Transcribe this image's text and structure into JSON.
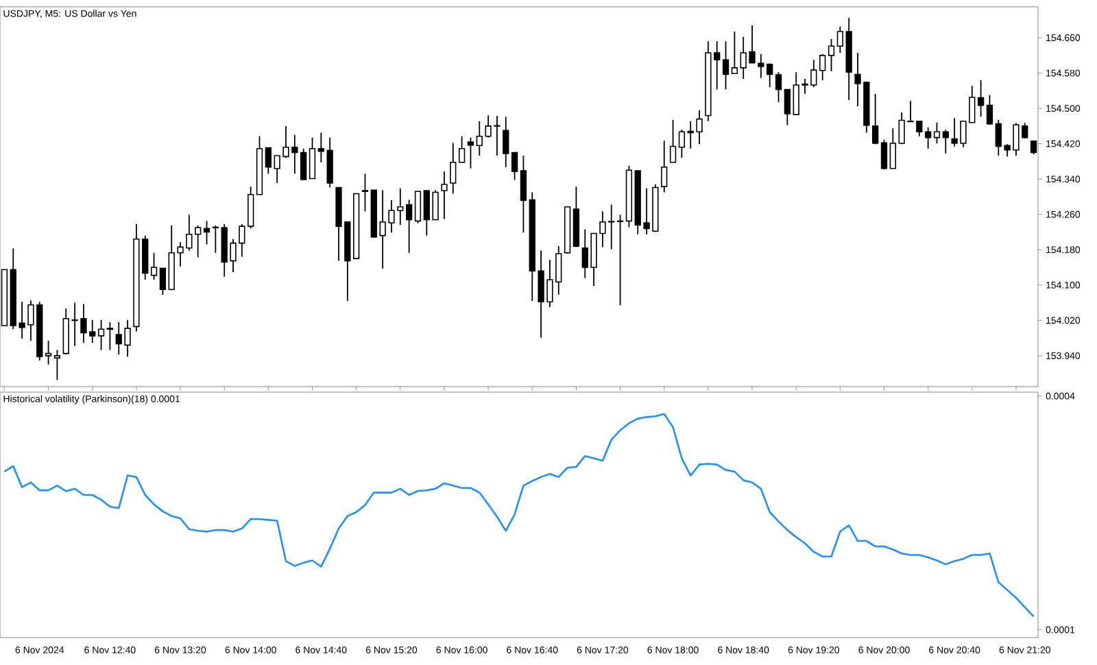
{
  "chart_data": [
    {
      "type": "candlestick",
      "title": "USDJPY, M5:  US Dollar vs Yen",
      "categories": [
        null,
        null,
        null,
        null,
        null,
        null,
        null,
        null,
        null,
        null,
        null,
        null,
        null,
        null,
        null,
        null,
        null,
        null,
        null,
        null,
        null,
        null,
        null,
        null,
        null,
        null,
        null,
        null,
        null,
        null,
        null,
        null,
        null,
        null,
        null,
        null,
        null,
        null,
        null,
        null,
        null,
        null,
        null,
        null,
        null,
        null,
        null,
        null,
        null,
        null,
        null,
        null,
        null,
        null,
        null,
        null,
        null,
        null,
        null,
        null,
        null,
        null,
        null,
        null,
        null,
        null,
        null,
        null,
        null,
        null,
        null,
        null,
        null,
        null,
        null,
        null,
        null,
        null,
        null,
        null,
        null,
        null,
        null,
        null,
        null,
        null,
        null,
        null,
        null,
        null,
        null,
        null,
        null,
        null,
        null,
        null,
        null,
        null,
        null,
        null,
        null,
        null,
        null,
        null,
        null,
        null,
        null,
        null,
        null,
        null,
        null,
        null,
        null,
        null,
        null,
        null,
        null,
        null
      ],
      "color": "#000000",
      "ohlc": [
        [
          154.008,
          154.135,
          154.008,
          154.135
        ],
        [
          154.135,
          154.183,
          154.0,
          154.008
        ],
        [
          154.014,
          154.062,
          153.979,
          154.004
        ],
        [
          154.01,
          154.065,
          153.974,
          154.055
        ],
        [
          154.055,
          154.062,
          153.929,
          153.938
        ],
        [
          153.94,
          153.974,
          153.92,
          153.945
        ],
        [
          153.935,
          153.953,
          153.885,
          153.94
        ],
        [
          153.945,
          154.047,
          153.943,
          154.024
        ],
        [
          154.02,
          154.06,
          153.962,
          154.021
        ],
        [
          154.024,
          154.057,
          153.969,
          153.992
        ],
        [
          153.994,
          154.021,
          153.969,
          153.985
        ],
        [
          153.985,
          154.021,
          153.953,
          154.0
        ],
        [
          154.0,
          154.016,
          153.953,
          154.002
        ],
        [
          153.988,
          154.016,
          153.943,
          153.967
        ],
        [
          153.964,
          154.021,
          153.938,
          154.002
        ],
        [
          154.006,
          154.238,
          153.995,
          154.204
        ],
        [
          154.204,
          154.212,
          154.112,
          154.127
        ],
        [
          154.122,
          154.173,
          154.112,
          154.14
        ],
        [
          154.138,
          154.138,
          154.078,
          154.09
        ],
        [
          154.09,
          154.235,
          154.088,
          154.173
        ],
        [
          154.173,
          154.197,
          154.142,
          154.186
        ],
        [
          154.184,
          154.259,
          154.178,
          154.215
        ],
        [
          154.215,
          154.235,
          154.163,
          154.23
        ],
        [
          154.228,
          154.245,
          154.192,
          154.22
        ],
        [
          154.23,
          154.235,
          154.173,
          154.231
        ],
        [
          154.23,
          154.238,
          154.119,
          154.152
        ],
        [
          154.155,
          154.204,
          154.129,
          154.195
        ],
        [
          154.195,
          154.238,
          154.164,
          154.233
        ],
        [
          154.233,
          154.323,
          154.228,
          154.305
        ],
        [
          154.305,
          154.437,
          154.305,
          154.409
        ],
        [
          154.411,
          154.411,
          154.352,
          154.367
        ],
        [
          154.364,
          154.393,
          154.331,
          154.393
        ],
        [
          154.391,
          154.46,
          154.388,
          154.412
        ],
        [
          154.412,
          154.44,
          154.352,
          154.4
        ],
        [
          154.4,
          154.409,
          154.339,
          154.339
        ],
        [
          154.341,
          154.434,
          154.341,
          154.409
        ],
        [
          154.409,
          154.445,
          154.378,
          154.403
        ],
        [
          154.405,
          154.434,
          154.321,
          154.331
        ],
        [
          154.321,
          154.321,
          154.155,
          154.233
        ],
        [
          154.243,
          154.243,
          154.064,
          154.155
        ],
        [
          154.16,
          154.307,
          154.16,
          154.307
        ],
        [
          154.312,
          154.352,
          154.267,
          154.314
        ],
        [
          154.315,
          154.315,
          154.207,
          154.209
        ],
        [
          154.212,
          154.315,
          154.137,
          154.243
        ],
        [
          154.241,
          154.292,
          154.219,
          154.269
        ],
        [
          154.269,
          154.319,
          154.236,
          154.277
        ],
        [
          154.282,
          154.293,
          154.173,
          154.248
        ],
        [
          154.245,
          154.312,
          154.24,
          154.312
        ],
        [
          154.314,
          154.314,
          154.212,
          154.248
        ],
        [
          154.248,
          154.315,
          154.248,
          154.31
        ],
        [
          154.314,
          154.357,
          154.25,
          154.328
        ],
        [
          154.331,
          154.422,
          154.307,
          154.378
        ],
        [
          154.378,
          154.437,
          154.378,
          154.409
        ],
        [
          154.424,
          154.434,
          154.364,
          154.417
        ],
        [
          154.416,
          154.471,
          154.393,
          154.437
        ],
        [
          154.437,
          154.484,
          154.434,
          154.46
        ],
        [
          154.46,
          154.483,
          154.393,
          154.461
        ],
        [
          154.45,
          154.481,
          154.367,
          154.398
        ],
        [
          154.4,
          154.4,
          154.338,
          154.357
        ],
        [
          154.359,
          154.393,
          154.219,
          154.292
        ],
        [
          154.293,
          154.31,
          154.064,
          154.132
        ],
        [
          154.132,
          154.178,
          153.981,
          154.062
        ],
        [
          154.062,
          154.157,
          154.05,
          154.112
        ],
        [
          154.107,
          154.188,
          154.078,
          154.171
        ],
        [
          154.173,
          154.277,
          154.171,
          154.277
        ],
        [
          154.272,
          154.323,
          154.186,
          154.188
        ],
        [
          154.184,
          154.226,
          154.116,
          154.14
        ],
        [
          154.14,
          154.217,
          154.098,
          154.217
        ],
        [
          154.217,
          154.267,
          154.186,
          154.243
        ],
        [
          154.243,
          154.282,
          154.181,
          154.244
        ],
        [
          154.244,
          154.259,
          154.054,
          154.245
        ],
        [
          154.245,
          154.37,
          154.231,
          154.36
        ],
        [
          154.359,
          154.359,
          154.215,
          154.236
        ],
        [
          154.241,
          154.319,
          154.215,
          154.228
        ],
        [
          154.222,
          154.328,
          154.22,
          154.321
        ],
        [
          154.323,
          154.427,
          154.31,
          154.367
        ],
        [
          154.378,
          154.474,
          154.378,
          154.414
        ],
        [
          154.412,
          154.452,
          154.388,
          154.447
        ],
        [
          154.448,
          154.471,
          154.409,
          154.445
        ],
        [
          154.447,
          154.496,
          154.419,
          154.476
        ],
        [
          154.484,
          154.652,
          154.471,
          154.626
        ],
        [
          154.626,
          154.652,
          154.543,
          154.61
        ],
        [
          154.61,
          154.652,
          154.543,
          154.577
        ],
        [
          154.579,
          154.674,
          154.579,
          154.592
        ],
        [
          154.592,
          154.662,
          154.567,
          154.626
        ],
        [
          154.628,
          154.688,
          154.603,
          154.603
        ],
        [
          154.602,
          154.623,
          154.569,
          154.595
        ],
        [
          154.6,
          154.602,
          154.548,
          154.577
        ],
        [
          154.576,
          154.582,
          154.514,
          154.543
        ],
        [
          154.543,
          154.543,
          154.462,
          154.488
        ],
        [
          154.486,
          154.582,
          154.486,
          154.553
        ],
        [
          154.553,
          154.567,
          154.533,
          154.555
        ],
        [
          154.553,
          154.61,
          154.548,
          154.587
        ],
        [
          154.586,
          154.623,
          154.564,
          154.62
        ],
        [
          154.62,
          154.657,
          154.584,
          154.641
        ],
        [
          154.641,
          154.685,
          154.626,
          154.674
        ],
        [
          154.674,
          154.705,
          154.519,
          154.582
        ],
        [
          154.577,
          154.626,
          154.505,
          154.556
        ],
        [
          154.559,
          154.559,
          154.445,
          154.462
        ],
        [
          154.46,
          154.533,
          154.419,
          154.421
        ],
        [
          154.422,
          154.429,
          154.362,
          154.364
        ],
        [
          154.364,
          154.455,
          154.364,
          154.421
        ],
        [
          154.421,
          154.491,
          154.419,
          154.473
        ],
        [
          154.47,
          154.517,
          154.469,
          154.471
        ],
        [
          154.471,
          154.471,
          154.437,
          154.447
        ],
        [
          154.447,
          154.457,
          154.409,
          154.434
        ],
        [
          154.434,
          154.468,
          154.421,
          154.447
        ],
        [
          154.447,
          154.452,
          154.398,
          154.434
        ],
        [
          154.431,
          154.478,
          154.414,
          154.421
        ],
        [
          154.421,
          154.471,
          154.412,
          154.471
        ],
        [
          154.468,
          154.551,
          154.468,
          154.525
        ],
        [
          154.524,
          154.564,
          154.481,
          154.507
        ],
        [
          154.507,
          154.53,
          154.463,
          154.465
        ],
        [
          154.465,
          154.474,
          154.393,
          154.414
        ],
        [
          154.416,
          154.419,
          154.391,
          154.406
        ],
        [
          154.406,
          154.467,
          154.393,
          154.463
        ],
        [
          154.46,
          154.467,
          154.432,
          154.434
        ],
        [
          154.426,
          154.426,
          154.396,
          154.4
        ]
      ],
      "ylim": [
        153.87,
        154.73
      ],
      "yticks": [
        {
          "value": 153.94,
          "label": "153.940"
        },
        {
          "value": 154.02,
          "label": "154.020"
        },
        {
          "value": 154.1,
          "label": "154.100"
        },
        {
          "value": 154.18,
          "label": "154.180"
        },
        {
          "value": 154.26,
          "label": "154.260"
        },
        {
          "value": 154.34,
          "label": "154.340"
        },
        {
          "value": 154.42,
          "label": "154.420"
        },
        {
          "value": 154.5,
          "label": "154.500"
        },
        {
          "value": 154.58,
          "label": "154.580"
        },
        {
          "value": 154.66,
          "label": "154.660"
        }
      ],
      "tick_labels": "y"
    },
    {
      "type": "line",
      "title": "Historical volatility (Parkinson)(18) 0.0001",
      "categories": [
        null,
        null,
        null,
        null,
        "6 Nov 2024",
        null,
        null,
        null,
        null,
        null,
        null,
        null,
        "6 Nov 12:40",
        null,
        null,
        null,
        null,
        null,
        null,
        null,
        "6 Nov 13:20",
        null,
        null,
        null,
        null,
        null,
        null,
        null,
        "6 Nov 14:00",
        null,
        null,
        null,
        null,
        null,
        null,
        null,
        "6 Nov 14:40",
        null,
        null,
        null,
        null,
        null,
        null,
        null,
        "6 Nov 15:20",
        null,
        null,
        null,
        null,
        null,
        null,
        null,
        "6 Nov 16:00",
        null,
        null,
        null,
        null,
        null,
        null,
        null,
        "6 Nov 16:40",
        null,
        null,
        null,
        null,
        null,
        null,
        null,
        "6 Nov 17:20",
        null,
        null,
        null,
        null,
        null,
        null,
        null,
        "6 Nov 18:00",
        null,
        null,
        null,
        null,
        null,
        null,
        null,
        "6 Nov 18:40",
        null,
        null,
        null,
        null,
        null,
        null,
        null,
        "6 Nov 19:20",
        null,
        null,
        null,
        null,
        null,
        null,
        null,
        "6 Nov 20:00",
        null,
        null,
        null,
        null,
        null,
        null,
        null,
        "6 Nov 20:40",
        null,
        null,
        null,
        null,
        null,
        null,
        null,
        "6 Nov 21:20",
        null
      ],
      "series": [
        {
          "color": "#1e90ff",
          "values": [
            0.000303,
            0.00031,
            0.000283,
            0.000289,
            0.000279,
            0.000279,
            0.000285,
            0.000278,
            0.000281,
            0.000273,
            0.000273,
            0.000267,
            0.000258,
            0.000256,
            0.000298,
            0.000296,
            0.000273,
            0.000261,
            0.000252,
            0.000246,
            0.000243,
            0.000229,
            0.000227,
            0.000226,
            0.000228,
            0.000228,
            0.000226,
            0.00023,
            0.000242,
            0.000242,
            0.000241,
            0.00024,
            0.000188,
            0.000182,
            0.000186,
            0.000189,
            0.000181,
            0.000204,
            0.00023,
            0.000246,
            0.000251,
            0.00026,
            0.000276,
            0.000276,
            0.000276,
            0.000281,
            0.000273,
            0.000278,
            0.000279,
            0.000281,
            0.000288,
            0.000285,
            0.000282,
            0.000282,
            0.000276,
            0.000261,
            0.000245,
            0.000227,
            0.000248,
            0.000285,
            0.000291,
            0.000296,
            0.0003,
            0.000296,
            0.000308,
            0.000309,
            0.000323,
            0.00032,
            0.000317,
            0.000344,
            0.000356,
            0.000365,
            0.000371,
            0.000373,
            0.000374,
            0.000377,
            0.00036,
            0.00032,
            0.000298,
            0.000312,
            0.000313,
            0.000312,
            0.000305,
            0.000303,
            0.000292,
            0.000289,
            0.000281,
            0.000251,
            0.000239,
            0.000228,
            0.000219,
            0.000211,
            0.0002,
            0.000194,
            0.000194,
            0.000226,
            0.000234,
            0.000214,
            0.000214,
            0.000207,
            0.000207,
            0.000203,
            0.000198,
            0.000196,
            0.000196,
            0.000193,
            0.000189,
            0.000184,
            0.000188,
            0.000191,
            0.000196,
            0.000196,
            0.000198,
            0.000161,
            0.000151,
            0.000141,
            0.000129,
            0.000117
          ]
        }
      ],
      "ylim": [
        9e-05,
        0.000405
      ],
      "yticks": [
        0.0004,
        0.0001
      ]
    }
  ]
}
